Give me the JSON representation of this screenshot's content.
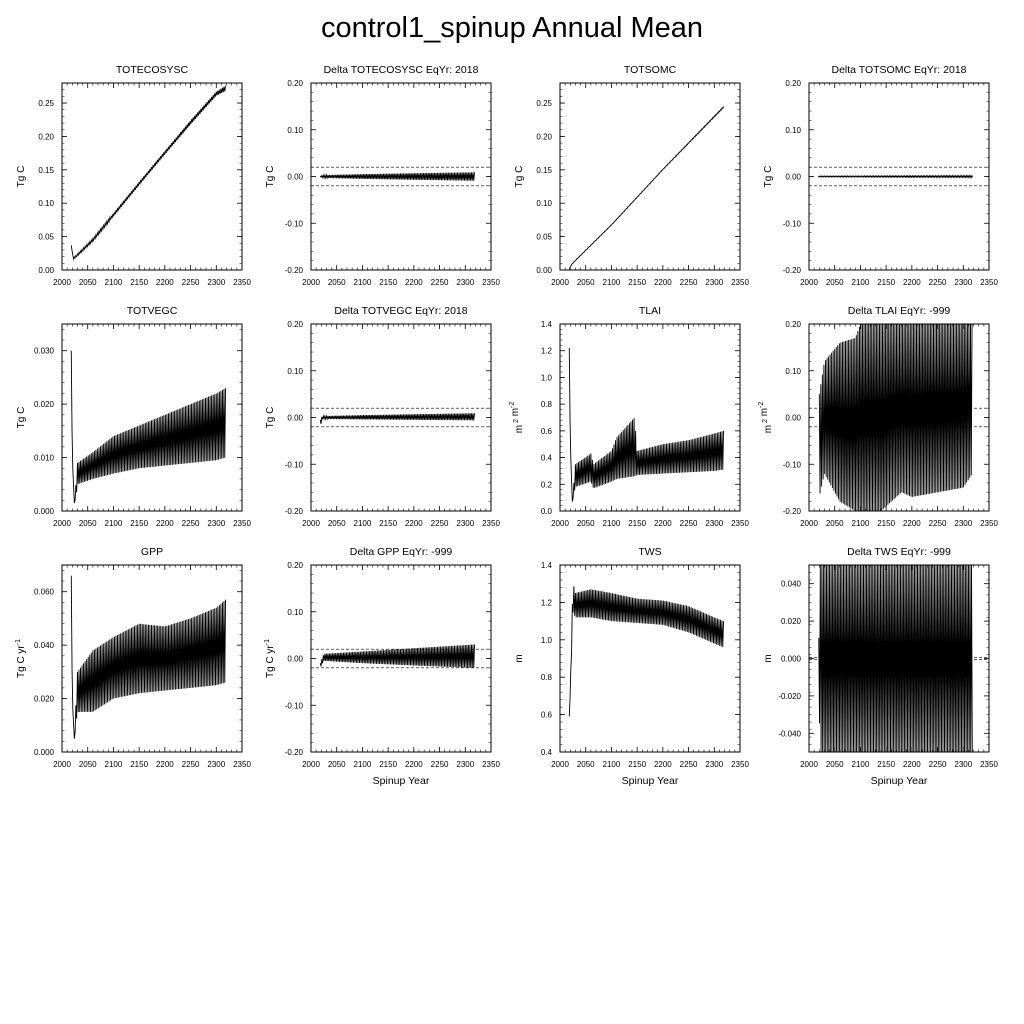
{
  "page": {
    "title": "control1_spinup Annual Mean"
  },
  "chart_data": [
    {
      "type": "line",
      "title": "TOTECOSYSC",
      "xlabel": "",
      "ylabel": "Tg C",
      "xlim": [
        2000,
        2350
      ],
      "ylim": [
        0,
        0.28
      ],
      "xticks": [
        2000,
        2050,
        2100,
        2150,
        2200,
        2250,
        2300,
        2350
      ],
      "yticks": [
        0,
        0.05,
        0.1,
        0.15,
        0.2,
        0.25
      ],
      "ytick_labels": [
        "0.00",
        "0.05",
        "0.10",
        "0.15",
        "0.20",
        "0.25"
      ],
      "series": [
        {
          "x": [
            2018,
            2022,
            2030,
            2060,
            2100,
            2150,
            2200,
            2250,
            2300,
            2318
          ],
          "low": [
            0.037,
            0.016,
            0.021,
            0.043,
            0.08,
            0.127,
            0.173,
            0.218,
            0.261,
            0.268
          ],
          "high": [
            0.037,
            0.018,
            0.024,
            0.047,
            0.085,
            0.132,
            0.178,
            0.224,
            0.267,
            0.276
          ]
        }
      ]
    },
    {
      "type": "line",
      "title": "Delta TOTECOSYSC EqYr: 2018",
      "xlabel": "",
      "ylabel": "Tg C",
      "xlim": [
        2000,
        2350
      ],
      "ylim": [
        -0.2,
        0.2
      ],
      "xticks": [
        2000,
        2050,
        2100,
        2150,
        2200,
        2250,
        2300,
        2350
      ],
      "yticks": [
        -0.2,
        -0.1,
        0,
        0.1,
        0.2
      ],
      "ytick_labels": [
        "-0.20",
        "-0.10",
        "0.00",
        "0.10",
        "0.20"
      ],
      "reference_lines": [
        0.02,
        -0.02
      ],
      "series": [
        {
          "x": [
            2018,
            2025,
            2100,
            2200,
            2318
          ],
          "low": [
            -0.001,
            -0.003,
            -0.005,
            -0.007,
            -0.009
          ],
          "high": [
            0.001,
            0.003,
            0.005,
            0.007,
            0.009
          ]
        }
      ]
    },
    {
      "type": "line",
      "title": "TOTSOMC",
      "xlabel": "",
      "ylabel": "Tg C",
      "xlim": [
        2000,
        2350
      ],
      "ylim": [
        0,
        0.28
      ],
      "xticks": [
        2000,
        2050,
        2100,
        2150,
        2200,
        2250,
        2300,
        2350
      ],
      "yticks": [
        0,
        0.05,
        0.1,
        0.15,
        0.2,
        0.25
      ],
      "ytick_labels": [
        "0.00",
        "0.05",
        "0.10",
        "0.15",
        "0.20",
        "0.25"
      ],
      "series": [
        {
          "x": [
            2018,
            2020,
            2025,
            2100,
            2200,
            2318
          ],
          "low": [
            0.0,
            0.005,
            0.01,
            0.067,
            0.15,
            0.243
          ],
          "high": [
            0.0,
            0.005,
            0.011,
            0.068,
            0.151,
            0.245
          ]
        }
      ]
    },
    {
      "type": "line",
      "title": "Delta TOTSOMC EqYr: 2018",
      "xlabel": "",
      "ylabel": "Tg C",
      "xlim": [
        2000,
        2350
      ],
      "ylim": [
        -0.2,
        0.2
      ],
      "xticks": [
        2000,
        2050,
        2100,
        2150,
        2200,
        2250,
        2300,
        2350
      ],
      "yticks": [
        -0.2,
        -0.1,
        0,
        0.1,
        0.2
      ],
      "ytick_labels": [
        "-0.20",
        "-0.10",
        "0.00",
        "0.10",
        "0.20"
      ],
      "reference_lines": [
        0.02,
        -0.02
      ],
      "series": [
        {
          "x": [
            2018,
            2318
          ],
          "low": [
            -0.001,
            -0.002
          ],
          "high": [
            0.001,
            0.002
          ]
        }
      ]
    },
    {
      "type": "line",
      "title": "TOTVEGC",
      "xlabel": "",
      "ylabel": "Tg C",
      "xlim": [
        2000,
        2350
      ],
      "ylim": [
        0,
        0.035
      ],
      "xticks": [
        2000,
        2050,
        2100,
        2150,
        2200,
        2250,
        2300,
        2350
      ],
      "yticks": [
        0,
        0.01,
        0.02,
        0.03
      ],
      "ytick_labels": [
        "0.000",
        "0.010",
        "0.020",
        "0.030"
      ],
      "series": [
        {
          "x": [
            2018,
            2020,
            2024,
            2028,
            2030,
            2060,
            2100,
            2150,
            2200,
            2250,
            2300,
            2318
          ],
          "low": [
            0.03,
            0.01,
            0.0015,
            0.003,
            0.005,
            0.006,
            0.007,
            0.008,
            0.0085,
            0.009,
            0.0095,
            0.01
          ],
          "high": [
            0.03,
            0.01,
            0.0015,
            0.006,
            0.009,
            0.011,
            0.014,
            0.016,
            0.018,
            0.02,
            0.022,
            0.023
          ]
        }
      ]
    },
    {
      "type": "line",
      "title": "Delta TOTVEGC EqYr: 2018",
      "xlabel": "",
      "ylabel": "Tg C",
      "xlim": [
        2000,
        2350
      ],
      "ylim": [
        -0.2,
        0.2
      ],
      "xticks": [
        2000,
        2050,
        2100,
        2150,
        2200,
        2250,
        2300,
        2350
      ],
      "yticks": [
        -0.2,
        -0.1,
        0,
        0.1,
        0.2
      ],
      "ytick_labels": [
        "-0.20",
        "-0.10",
        "0.00",
        "0.10",
        "0.20"
      ],
      "reference_lines": [
        0.02,
        -0.02
      ],
      "series": [
        {
          "x": [
            2018,
            2022,
            2100,
            2200,
            2318
          ],
          "low": [
            -0.02,
            -0.003,
            -0.004,
            -0.005,
            -0.006
          ],
          "high": [
            -0.005,
            0.003,
            0.005,
            0.007,
            0.009
          ]
        }
      ]
    },
    {
      "type": "line",
      "title": "TLAI",
      "xlabel": "",
      "ylabel": "m 2 m-2",
      "xlim": [
        2000,
        2350
      ],
      "ylim": [
        0,
        1.4
      ],
      "xticks": [
        2000,
        2050,
        2100,
        2150,
        2200,
        2250,
        2300,
        2350
      ],
      "yticks": [
        0,
        0.2,
        0.4,
        0.6,
        0.8,
        1.0,
        1.2,
        1.4
      ],
      "ytick_labels": [
        "0.0",
        "0.2",
        "0.4",
        "0.6",
        "0.8",
        "1.0",
        "1.2",
        "1.4"
      ],
      "series": [
        {
          "x": [
            2018,
            2020,
            2024,
            2030,
            2060,
            2065,
            2100,
            2110,
            2145,
            2150,
            2200,
            2250,
            2300,
            2318
          ],
          "low": [
            1.22,
            0.5,
            0.07,
            0.18,
            0.22,
            0.17,
            0.22,
            0.24,
            0.26,
            0.27,
            0.28,
            0.29,
            0.3,
            0.31
          ],
          "high": [
            1.22,
            0.5,
            0.07,
            0.35,
            0.43,
            0.35,
            0.45,
            0.55,
            0.7,
            0.45,
            0.5,
            0.53,
            0.58,
            0.6
          ]
        }
      ]
    },
    {
      "type": "line",
      "title": "Delta TLAI EqYr: -999",
      "xlabel": "",
      "ylabel": "m 2 m-2",
      "xlim": [
        2000,
        2350
      ],
      "ylim": [
        -0.2,
        0.2
      ],
      "xticks": [
        2000,
        2050,
        2100,
        2150,
        2200,
        2250,
        2300,
        2350
      ],
      "yticks": [
        -0.2,
        -0.1,
        0,
        0.1,
        0.2
      ],
      "ytick_labels": [
        "-0.20",
        "-0.10",
        "0.00",
        "0.10",
        "0.20"
      ],
      "reference_lines": [
        0.02,
        -0.02
      ],
      "series": [
        {
          "x": [
            2020,
            2030,
            2060,
            2090,
            2100,
            2140,
            2180,
            2200,
            2250,
            2300,
            2318
          ],
          "low": [
            -0.17,
            -0.12,
            -0.18,
            -0.2,
            -0.2,
            -0.2,
            -0.16,
            -0.17,
            -0.16,
            -0.15,
            -0.12
          ],
          "high": [
            0.05,
            0.12,
            0.16,
            0.17,
            0.2,
            0.2,
            0.2,
            0.2,
            0.2,
            0.2,
            0.2
          ]
        }
      ]
    },
    {
      "type": "line",
      "title": "GPP",
      "xlabel": "",
      "ylabel": "Tg C yr-1",
      "xlim": [
        2000,
        2350
      ],
      "ylim": [
        0,
        0.07
      ],
      "xticks": [
        2000,
        2050,
        2100,
        2150,
        2200,
        2250,
        2300,
        2350
      ],
      "yticks": [
        0,
        0.02,
        0.04,
        0.06
      ],
      "ytick_labels": [
        "0.000",
        "0.020",
        "0.040",
        "0.060"
      ],
      "series": [
        {
          "x": [
            2018,
            2020,
            2024,
            2030,
            2060,
            2100,
            2150,
            2200,
            2250,
            2300,
            2318
          ],
          "low": [
            0.066,
            0.02,
            0.005,
            0.015,
            0.015,
            0.02,
            0.022,
            0.023,
            0.024,
            0.025,
            0.026
          ],
          "high": [
            0.066,
            0.02,
            0.005,
            0.03,
            0.038,
            0.043,
            0.048,
            0.047,
            0.05,
            0.054,
            0.057
          ]
        }
      ]
    },
    {
      "type": "line",
      "title": "Delta GPP EqYr: -999",
      "xlabel": "Spinup Year",
      "ylabel": "Tg C yr-1",
      "xlim": [
        2000,
        2350
      ],
      "ylim": [
        -0.2,
        0.2
      ],
      "xticks": [
        2000,
        2050,
        2100,
        2150,
        2200,
        2250,
        2300,
        2350
      ],
      "yticks": [
        -0.2,
        -0.1,
        0,
        0.1,
        0.2
      ],
      "ytick_labels": [
        "-0.20",
        "-0.10",
        "0.00",
        "0.10",
        "0.20"
      ],
      "reference_lines": [
        0.02,
        -0.02
      ],
      "series": [
        {
          "x": [
            2018,
            2025,
            2100,
            2200,
            2318
          ],
          "low": [
            -0.02,
            -0.005,
            -0.01,
            -0.015,
            -0.02
          ],
          "high": [
            -0.01,
            0.01,
            0.015,
            0.022,
            0.03
          ]
        }
      ]
    },
    {
      "type": "line",
      "title": "TWS",
      "xlabel": "Spinup Year",
      "ylabel": "m",
      "xlim": [
        2000,
        2350
      ],
      "ylim": [
        0.4,
        1.4
      ],
      "xticks": [
        2000,
        2050,
        2100,
        2150,
        2200,
        2250,
        2300,
        2350
      ],
      "yticks": [
        0.4,
        0.6,
        0.8,
        1.0,
        1.2,
        1.4
      ],
      "ytick_labels": [
        "0.4",
        "0.6",
        "0.8",
        "1.0",
        "1.2",
        "1.4"
      ],
      "series": [
        {
          "x": [
            2018,
            2020,
            2025,
            2030,
            2060,
            2100,
            2150,
            2200,
            2250,
            2300,
            2318
          ],
          "low": [
            0.59,
            0.72,
            1.15,
            1.12,
            1.12,
            1.1,
            1.09,
            1.08,
            1.04,
            0.98,
            0.96
          ],
          "high": [
            0.59,
            0.72,
            1.31,
            1.25,
            1.27,
            1.25,
            1.22,
            1.21,
            1.18,
            1.12,
            1.1
          ]
        }
      ]
    },
    {
      "type": "line",
      "title": "Delta TWS EqYr: -999",
      "xlabel": "Spinup Year",
      "ylabel": "m",
      "xlim": [
        2000,
        2350
      ],
      "ylim": [
        -0.05,
        0.05
      ],
      "xticks": [
        2000,
        2050,
        2100,
        2150,
        2200,
        2250,
        2300,
        2350
      ],
      "yticks": [
        -0.04,
        -0.02,
        0,
        0.02,
        0.04
      ],
      "ytick_labels": [
        "-0.040",
        "-0.020",
        "0.000",
        "0.020",
        "0.040"
      ],
      "reference_lines": [
        0.0005,
        -0.0005
      ],
      "series": [
        {
          "x": [
            2019,
            2021,
            2318
          ],
          "low": [
            0.011,
            -0.05,
            -0.05
          ],
          "high": [
            0.011,
            0.05,
            0.05
          ]
        }
      ]
    }
  ]
}
